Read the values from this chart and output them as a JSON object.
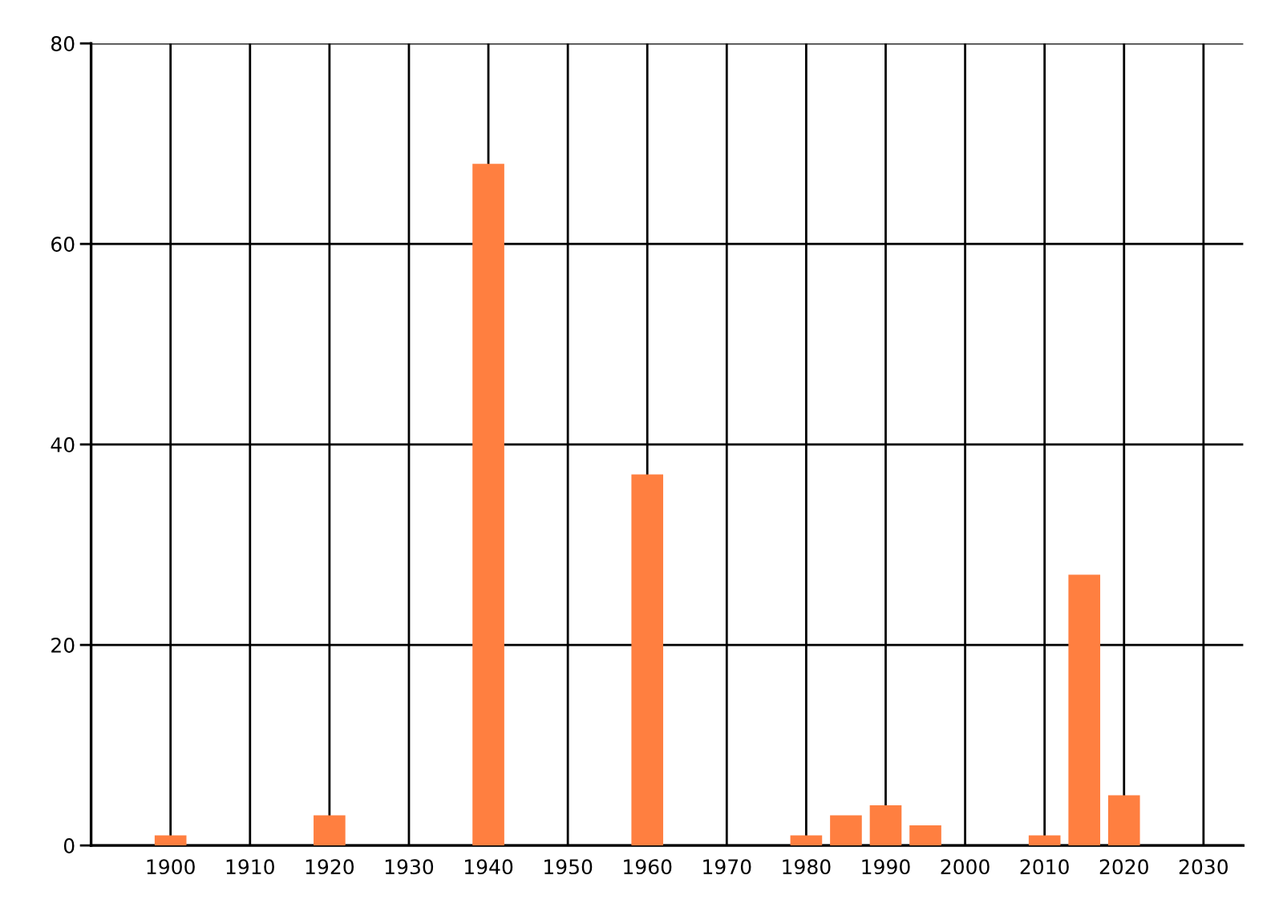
{
  "chart_data": {
    "type": "bar",
    "x": [
      1900,
      1920,
      1940,
      1960,
      1980,
      1985,
      1990,
      1995,
      2010,
      2015,
      2020
    ],
    "values": [
      1,
      3,
      68,
      37,
      1,
      3,
      4,
      2,
      1,
      27,
      5
    ],
    "color": "#ff7f40",
    "xlim": [
      1890,
      2035
    ],
    "xticks": [
      1900,
      1910,
      1920,
      1930,
      1940,
      1950,
      1960,
      1970,
      1980,
      1990,
      2000,
      2010,
      2020,
      2030
    ],
    "ylim": [
      0,
      80
    ],
    "yticks": [
      0,
      20,
      40,
      60,
      80
    ],
    "grid": true,
    "legend": false
  }
}
